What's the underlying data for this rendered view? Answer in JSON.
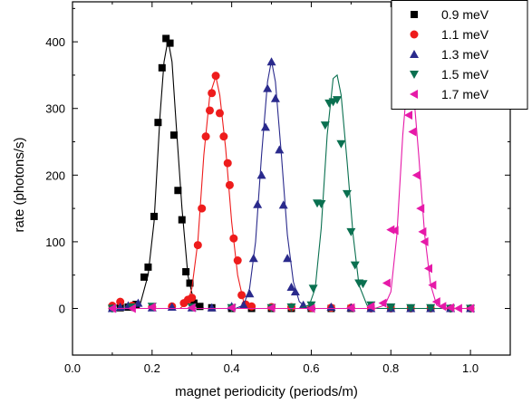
{
  "chart_data": {
    "type": "scatter",
    "xlabel": "magnet periodicity (periods/m)",
    "ylabel": "rate (photons/s)",
    "xlim": [
      0.0,
      1.1
    ],
    "ylim": [
      -70,
      460
    ],
    "xticks": [
      0.0,
      0.2,
      0.4,
      0.6,
      0.8,
      1.0
    ],
    "yticks": [
      0,
      100,
      200,
      300,
      400
    ],
    "xtick_labels": [
      "0.0",
      "0.2",
      "0.4",
      "0.6",
      "0.8",
      "1.0"
    ],
    "ytick_labels": [
      "0",
      "100",
      "200",
      "300",
      "400"
    ],
    "grid": false,
    "legend_position": "top-right",
    "series": [
      {
        "name": "0.9 meV",
        "marker": "square",
        "color": "#000000",
        "points": [
          [
            0.1,
            0
          ],
          [
            0.12,
            1
          ],
          [
            0.14,
            2
          ],
          [
            0.16,
            6
          ],
          [
            0.18,
            47
          ],
          [
            0.19,
            62
          ],
          [
            0.205,
            138
          ],
          [
            0.215,
            279
          ],
          [
            0.225,
            361
          ],
          [
            0.235,
            405
          ],
          [
            0.245,
            398
          ],
          [
            0.255,
            260
          ],
          [
            0.265,
            177
          ],
          [
            0.275,
            133
          ],
          [
            0.285,
            55
          ],
          [
            0.295,
            38
          ],
          [
            0.305,
            8
          ],
          [
            0.32,
            3
          ],
          [
            0.35,
            1
          ],
          [
            0.4,
            0
          ],
          [
            0.45,
            0
          ],
          [
            0.5,
            0
          ],
          [
            0.55,
            0
          ],
          [
            0.6,
            0
          ],
          [
            0.65,
            0
          ],
          [
            0.7,
            0
          ],
          [
            0.75,
            0
          ],
          [
            0.8,
            0
          ],
          [
            0.85,
            0
          ],
          [
            0.9,
            0
          ],
          [
            0.95,
            0
          ],
          [
            1.0,
            0
          ]
        ],
        "fit": [
          [
            0.1,
            0
          ],
          [
            0.15,
            0
          ],
          [
            0.17,
            6
          ],
          [
            0.19,
            50
          ],
          [
            0.205,
            130
          ],
          [
            0.22,
            290
          ],
          [
            0.23,
            370
          ],
          [
            0.24,
            403
          ],
          [
            0.25,
            370
          ],
          [
            0.26,
            280
          ],
          [
            0.275,
            150
          ],
          [
            0.29,
            50
          ],
          [
            0.305,
            10
          ],
          [
            0.33,
            0
          ],
          [
            1.0,
            0
          ]
        ]
      },
      {
        "name": "1.1 meV",
        "marker": "circle",
        "color": "#ee1c1c",
        "points": [
          [
            0.1,
            4
          ],
          [
            0.12,
            10
          ],
          [
            0.15,
            4
          ],
          [
            0.2,
            2
          ],
          [
            0.25,
            3
          ],
          [
            0.28,
            8
          ],
          [
            0.29,
            13
          ],
          [
            0.3,
            16
          ],
          [
            0.315,
            95
          ],
          [
            0.325,
            150
          ],
          [
            0.335,
            258
          ],
          [
            0.345,
            297
          ],
          [
            0.35,
            323
          ],
          [
            0.36,
            349
          ],
          [
            0.37,
            293
          ],
          [
            0.38,
            258
          ],
          [
            0.39,
            218
          ],
          [
            0.395,
            185
          ],
          [
            0.405,
            105
          ],
          [
            0.415,
            72
          ],
          [
            0.425,
            20
          ],
          [
            0.435,
            6
          ],
          [
            0.45,
            3
          ],
          [
            0.5,
            2
          ],
          [
            0.55,
            2
          ],
          [
            0.6,
            1
          ],
          [
            0.65,
            1
          ],
          [
            0.7,
            1
          ],
          [
            0.75,
            0
          ],
          [
            0.8,
            0
          ],
          [
            0.85,
            0
          ],
          [
            0.9,
            0
          ],
          [
            0.95,
            0
          ],
          [
            1.0,
            0
          ]
        ],
        "fit": [
          [
            0.1,
            0
          ],
          [
            0.27,
            0
          ],
          [
            0.29,
            10
          ],
          [
            0.3,
            30
          ],
          [
            0.315,
            100
          ],
          [
            0.33,
            230
          ],
          [
            0.345,
            320
          ],
          [
            0.36,
            348
          ],
          [
            0.37,
            320
          ],
          [
            0.385,
            240
          ],
          [
            0.4,
            130
          ],
          [
            0.415,
            50
          ],
          [
            0.43,
            10
          ],
          [
            0.45,
            0
          ],
          [
            1.0,
            0
          ]
        ]
      },
      {
        "name": "1.3 meV",
        "marker": "triangle-up",
        "color": "#2a2a8c",
        "points": [
          [
            0.1,
            0
          ],
          [
            0.12,
            2
          ],
          [
            0.14,
            4
          ],
          [
            0.165,
            8
          ],
          [
            0.2,
            1
          ],
          [
            0.25,
            2
          ],
          [
            0.3,
            1
          ],
          [
            0.35,
            1
          ],
          [
            0.4,
            3
          ],
          [
            0.43,
            5
          ],
          [
            0.445,
            22
          ],
          [
            0.455,
            75
          ],
          [
            0.465,
            156
          ],
          [
            0.475,
            200
          ],
          [
            0.485,
            272
          ],
          [
            0.49,
            330
          ],
          [
            0.5,
            370
          ],
          [
            0.51,
            315
          ],
          [
            0.52,
            238
          ],
          [
            0.53,
            155
          ],
          [
            0.54,
            75
          ],
          [
            0.55,
            32
          ],
          [
            0.56,
            25
          ],
          [
            0.58,
            5
          ],
          [
            0.6,
            3
          ],
          [
            0.65,
            2
          ],
          [
            0.7,
            1
          ],
          [
            0.75,
            0
          ],
          [
            0.8,
            0
          ],
          [
            0.85,
            0
          ],
          [
            0.9,
            0
          ],
          [
            0.95,
            0
          ],
          [
            1.0,
            0
          ]
        ],
        "fit": [
          [
            0.1,
            0
          ],
          [
            0.41,
            0
          ],
          [
            0.43,
            5
          ],
          [
            0.445,
            30
          ],
          [
            0.46,
            100
          ],
          [
            0.475,
            230
          ],
          [
            0.49,
            340
          ],
          [
            0.5,
            372
          ],
          [
            0.51,
            340
          ],
          [
            0.525,
            230
          ],
          [
            0.54,
            110
          ],
          [
            0.555,
            40
          ],
          [
            0.57,
            10
          ],
          [
            0.59,
            0
          ],
          [
            1.0,
            0
          ]
        ]
      },
      {
        "name": "1.5 meV",
        "marker": "triangle-down",
        "color": "#0a7050",
        "points": [
          [
            0.1,
            0
          ],
          [
            0.15,
            2
          ],
          [
            0.2,
            3
          ],
          [
            0.3,
            2
          ],
          [
            0.4,
            1
          ],
          [
            0.5,
            1
          ],
          [
            0.55,
            2
          ],
          [
            0.6,
            5
          ],
          [
            0.605,
            30
          ],
          [
            0.615,
            158
          ],
          [
            0.625,
            157
          ],
          [
            0.635,
            275
          ],
          [
            0.645,
            308
          ],
          [
            0.655,
            310
          ],
          [
            0.665,
            313
          ],
          [
            0.675,
            247
          ],
          [
            0.69,
            172
          ],
          [
            0.7,
            115
          ],
          [
            0.71,
            65
          ],
          [
            0.72,
            38
          ],
          [
            0.73,
            37
          ],
          [
            0.75,
            5
          ],
          [
            0.8,
            2
          ],
          [
            0.85,
            1
          ],
          [
            0.9,
            1
          ],
          [
            0.95,
            0
          ],
          [
            1.0,
            0
          ]
        ],
        "fit": [
          [
            0.1,
            0
          ],
          [
            0.57,
            0
          ],
          [
            0.595,
            5
          ],
          [
            0.61,
            30
          ],
          [
            0.625,
            120
          ],
          [
            0.64,
            260
          ],
          [
            0.655,
            345
          ],
          [
            0.665,
            350
          ],
          [
            0.675,
            320
          ],
          [
            0.69,
            220
          ],
          [
            0.705,
            110
          ],
          [
            0.72,
            35
          ],
          [
            0.74,
            5
          ],
          [
            0.76,
            0
          ],
          [
            1.0,
            0
          ]
        ]
      },
      {
        "name": "1.7 meV",
        "marker": "triangle-left",
        "color": "#e619a8",
        "points": [
          [
            0.1,
            0
          ],
          [
            0.15,
            0
          ],
          [
            0.2,
            2
          ],
          [
            0.3,
            1
          ],
          [
            0.4,
            1
          ],
          [
            0.5,
            1
          ],
          [
            0.6,
            0
          ],
          [
            0.7,
            1
          ],
          [
            0.75,
            3
          ],
          [
            0.78,
            8
          ],
          [
            0.79,
            38
          ],
          [
            0.8,
            118
          ],
          [
            0.81,
            117
          ],
          [
            0.825,
            325
          ],
          [
            0.835,
            324
          ],
          [
            0.845,
            290
          ],
          [
            0.855,
            265
          ],
          [
            0.865,
            200
          ],
          [
            0.875,
            150
          ],
          [
            0.88,
            115
          ],
          [
            0.885,
            100
          ],
          [
            0.895,
            60
          ],
          [
            0.905,
            35
          ],
          [
            0.915,
            10
          ],
          [
            0.93,
            3
          ],
          [
            0.95,
            1
          ],
          [
            0.97,
            0
          ],
          [
            1.0,
            0
          ]
        ],
        "fit": [
          [
            0.1,
            0
          ],
          [
            0.76,
            0
          ],
          [
            0.785,
            5
          ],
          [
            0.8,
            25
          ],
          [
            0.815,
            110
          ],
          [
            0.83,
            260
          ],
          [
            0.845,
            365
          ],
          [
            0.855,
            340
          ],
          [
            0.87,
            230
          ],
          [
            0.885,
            110
          ],
          [
            0.9,
            35
          ],
          [
            0.915,
            5
          ],
          [
            0.93,
            0
          ],
          [
            1.0,
            0
          ]
        ]
      }
    ]
  }
}
